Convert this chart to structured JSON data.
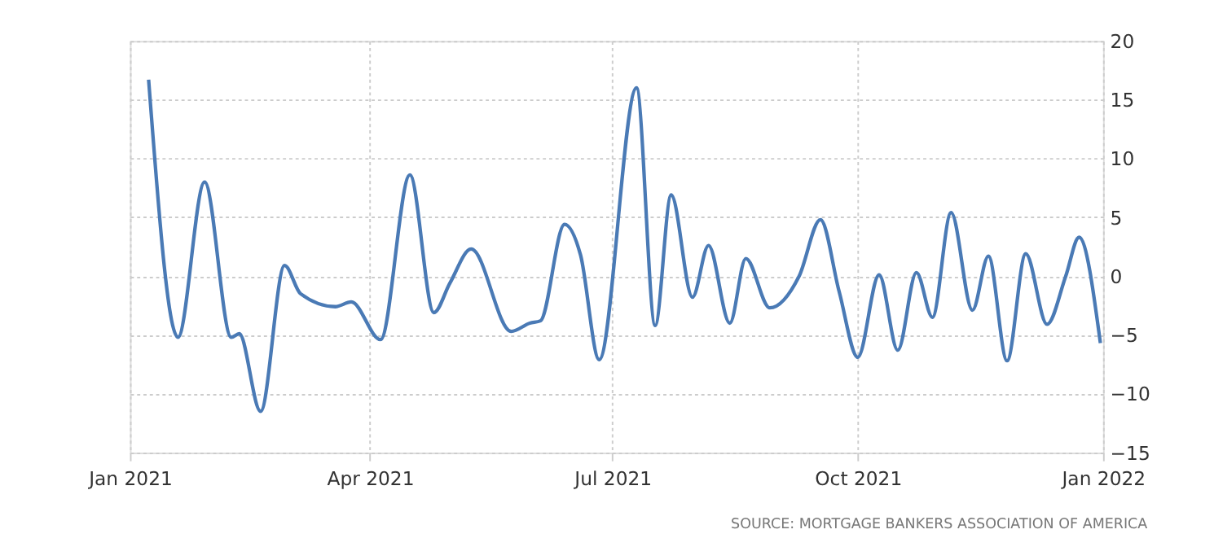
{
  "chart_data": {
    "type": "line",
    "x": [
      "2021-01-08",
      "2021-01-19",
      "2021-01-29",
      "2021-02-08",
      "2021-02-11",
      "2021-02-19",
      "2021-02-28",
      "2021-03-06",
      "2021-03-19",
      "2021-03-25",
      "2021-04-05",
      "2021-04-16",
      "2021-04-25",
      "2021-05-01",
      "2021-05-09",
      "2021-05-24",
      "2021-05-31",
      "2021-06-04",
      "2021-06-13",
      "2021-06-19",
      "2021-06-26",
      "2021-07-10",
      "2021-07-17",
      "2021-07-23",
      "2021-07-31",
      "2021-08-06",
      "2021-08-14",
      "2021-08-20",
      "2021-08-29",
      "2021-09-09",
      "2021-09-17",
      "2021-09-24",
      "2021-10-01",
      "2021-10-09",
      "2021-10-16",
      "2021-10-23",
      "2021-10-29",
      "2021-11-05",
      "2021-11-13",
      "2021-11-19",
      "2021-11-26",
      "2021-12-03",
      "2021-12-11",
      "2021-12-18",
      "2021-12-23",
      "2021-12-31"
    ],
    "series": [
      {
        "color": "#4a7ab5",
        "values": [
          16.7,
          -5.2,
          8.0,
          -5.2,
          -4.9,
          -11.5,
          0.9,
          -1.5,
          -2.6,
          -2.2,
          -5.4,
          8.6,
          -3.1,
          -0.6,
          2.3,
          -4.7,
          -4.0,
          -3.8,
          4.4,
          1.8,
          -7.1,
          16.0,
          -4.2,
          6.9,
          -1.8,
          2.6,
          -4.0,
          1.5,
          -2.7,
          0,
          4.8,
          -1.3,
          -6.9,
          0.1,
          -6.3,
          0.3,
          -3.5,
          5.4,
          -2.9,
          1.7,
          -7.2,
          1.9,
          -4.1,
          0,
          3.3,
          -5.7
        ]
      }
    ],
    "xlim": [
      "2021-01-01",
      "2022-01-01"
    ],
    "xticks": [
      {
        "value": "2021-01-01",
        "label": "Jan 2021"
      },
      {
        "value": "2021-04-01",
        "label": "Apr 2021"
      },
      {
        "value": "2021-07-01",
        "label": "Jul 2021"
      },
      {
        "value": "2021-10-01",
        "label": "Oct 2021"
      },
      {
        "value": "2022-01-01",
        "label": "Jan 2022"
      }
    ],
    "ylim": [
      -15,
      20
    ],
    "yticks": [
      -15,
      -10,
      -5,
      0,
      5,
      10,
      15,
      20
    ],
    "grid": true,
    "line_style": "solid",
    "marker": "none",
    "legend": false,
    "annotations": [
      "SOURCE: MORTGAGE BANKERS ASSOCIATION OF AMERICA"
    ]
  }
}
